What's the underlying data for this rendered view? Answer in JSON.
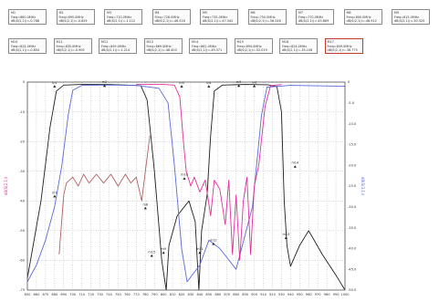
{
  "markers_row1": [
    {
      "name": "M1",
      "freq": "Freq=680.0MHz",
      "val": "dB(S(2,1))=-0.788"
    },
    {
      "name": "M2",
      "freq": "Freq=695.0MHz",
      "val": "dB(S(2,1))=-0.829"
    },
    {
      "name": "M3",
      "freq": "Freq=710.0MHz",
      "val": "dB(S(2,1))=-1.112"
    },
    {
      "name": "M4",
      "freq": "Freq=728.0MHz",
      "val": "dB(S(2,1))=-46.516"
    },
    {
      "name": "M5",
      "freq": "Freq=735.0MHz",
      "val": "dB(S(2,1))=-47.342"
    },
    {
      "name": "M6",
      "freq": "Freq=750.0MHz",
      "val": "dB(S(2,1))=-56.246"
    },
    {
      "name": "M7",
      "freq": "Freq=770.0MHz",
      "val": "dB(S(2,1))=-45.869"
    },
    {
      "name": "M8",
      "freq": "Freq=800.0MHz",
      "val": "dB(S(2,1))=-48.912"
    },
    {
      "name": "M9",
      "freq": "Freq=815.0MHz",
      "val": "dB(S(2,1))=-50.320"
    }
  ],
  "markers_row2": [
    {
      "name": "M10",
      "freq": "Freq=824.0MHz",
      "val": "dB(S(2,1))=-0.854"
    },
    {
      "name": "M11",
      "freq": "Freq=835.0MHz",
      "val": "dB(S(2,1))=-0.909"
    },
    {
      "name": "M12",
      "freq": "Freq=849.0MHz",
      "val": "dB(S(2,1))=-1.214"
    },
    {
      "name": "M13",
      "freq": "Freq=869.0MHz",
      "val": "dB(S(2,1))=-48.403"
    },
    {
      "name": "M14",
      "freq": "Freq=881.0MHz",
      "val": "dB(S(2,1))=-49.371"
    },
    {
      "name": "M15",
      "freq": "Freq=894.0MHz",
      "val": "dB(S(2,1))=-52.019"
    },
    {
      "name": "M16",
      "freq": "Freq=824.0MHz",
      "val": "dB(S(2,1))=-35.108"
    },
    {
      "name": "M17",
      "freq": "Freq=849.0MHz",
      "val": "dB(S(2,1))=-38.775"
    }
  ],
  "colors": {
    "s21": "#1f1f1f",
    "s11": "#e0309a",
    "s22": "#b06060",
    "s31": "#5a6ad8",
    "axis": "#555555",
    "grid": "#9a9a9a"
  },
  "chart_data": {
    "type": "line",
    "xlim": [
      650,
      1000
    ],
    "ylim_left": [
      -70,
      0
    ],
    "ylim_right": [
      -50,
      0
    ],
    "left_axis_label": "dB(S(2,1))",
    "right_axis_label": "dB(S(3,1))",
    "x_ticks": [
      "650",
      "660",
      "670",
      "680",
      "690",
      "700",
      "710",
      "720",
      "730",
      "740",
      "750",
      "760",
      "770",
      "780",
      "790",
      "800",
      "810",
      "820",
      "830",
      "840",
      "850",
      "860",
      "870",
      "880",
      "890",
      "900",
      "910",
      "920",
      "930",
      "940",
      "950",
      "960",
      "970",
      "980",
      "990",
      "1000"
    ],
    "y_ticks_left": [
      "0",
      "-10",
      "-20",
      "-30",
      "-40",
      "-50",
      "-60",
      "-70"
    ],
    "y_ticks_right": [
      "0",
      "-5.0",
      "-10.0",
      "-15.0",
      "-20.0",
      "-25.0",
      "-30.0",
      "-35.0",
      "-40.0",
      "-45.0",
      "-50.0"
    ],
    "series": [
      {
        "key": "s21",
        "axis": "left",
        "points": [
          [
            650,
            -66
          ],
          [
            665,
            -40
          ],
          [
            675,
            -15
          ],
          [
            682,
            -3
          ],
          [
            690,
            -1
          ],
          [
            710,
            -0.8
          ],
          [
            740,
            -0.8
          ],
          [
            775,
            -1.2
          ],
          [
            782,
            -6
          ],
          [
            790,
            -30
          ],
          [
            798,
            -60
          ],
          [
            803,
            -70
          ],
          [
            806,
            -55
          ],
          [
            815,
            -45
          ],
          [
            828,
            -40
          ],
          [
            835,
            -47
          ],
          [
            839,
            -70
          ],
          [
            842,
            -50
          ],
          [
            848,
            -38
          ],
          [
            852,
            -18
          ],
          [
            856,
            -3
          ],
          [
            865,
            -1.0
          ],
          [
            890,
            -0.8
          ],
          [
            915,
            -0.9
          ],
          [
            925,
            -1.5
          ],
          [
            930,
            -10
          ],
          [
            933,
            -40
          ],
          [
            936,
            -55
          ],
          [
            940,
            -62
          ],
          [
            950,
            -55
          ],
          [
            960,
            -50
          ],
          [
            975,
            -58
          ],
          [
            990,
            -65
          ],
          [
            1000,
            -70
          ]
        ]
      },
      {
        "key": "s31",
        "axis": "right",
        "points": [
          [
            650,
            -48
          ],
          [
            660,
            -44
          ],
          [
            670,
            -38
          ],
          [
            680,
            -30
          ],
          [
            688,
            -20
          ],
          [
            695,
            -8
          ],
          [
            700,
            -2
          ],
          [
            710,
            -0.8
          ],
          [
            740,
            -0.7
          ],
          [
            770,
            -0.8
          ],
          [
            795,
            -1.5
          ],
          [
            805,
            -5
          ],
          [
            812,
            -20
          ],
          [
            820,
            -40
          ],
          [
            826,
            -48
          ],
          [
            840,
            -44
          ],
          [
            850,
            -38
          ],
          [
            862,
            -40
          ],
          [
            880,
            -45
          ],
          [
            898,
            -30
          ],
          [
            908,
            -8
          ],
          [
            914,
            -1.2
          ],
          [
            940,
            -0.8
          ],
          [
            970,
            -0.9
          ],
          [
            1000,
            -1.0
          ]
        ]
      },
      {
        "key": "s22",
        "axis": "left",
        "points": [
          [
            685,
            -58
          ],
          [
            690,
            -38
          ],
          [
            693,
            -34
          ],
          [
            700,
            -32
          ],
          [
            706,
            -35
          ],
          [
            712,
            -31
          ],
          [
            718,
            -34
          ],
          [
            726,
            -31
          ],
          [
            734,
            -34
          ],
          [
            742,
            -31
          ],
          [
            750,
            -35
          ],
          [
            758,
            -31
          ],
          [
            764,
            -34
          ],
          [
            770,
            -32
          ],
          [
            776,
            -40
          ],
          [
            780,
            -30
          ],
          [
            785,
            -18
          ]
        ]
      },
      {
        "key": "s11",
        "axis": "left",
        "points": [
          [
            770,
            -0.8
          ],
          [
            800,
            -0.8
          ],
          [
            812,
            -1.0
          ],
          [
            818,
            -5
          ],
          [
            822,
            -20
          ],
          [
            825,
            -30
          ],
          [
            830,
            -35
          ],
          [
            834,
            -32
          ],
          [
            840,
            -37
          ],
          [
            846,
            -33
          ],
          [
            852,
            -45
          ],
          [
            856,
            -33
          ],
          [
            862,
            -36
          ],
          [
            868,
            -48
          ],
          [
            872,
            -33
          ],
          [
            876,
            -58
          ],
          [
            880,
            -38
          ],
          [
            884,
            -60
          ],
          [
            888,
            -40
          ],
          [
            892,
            -32
          ],
          [
            896,
            -58
          ],
          [
            900,
            -35
          ],
          [
            905,
            -28
          ],
          [
            912,
            -8
          ],
          [
            918,
            -1.2
          ],
          [
            930,
            -0.8
          ]
        ]
      }
    ],
    "marker_labels": [
      {
        "name": "m1",
        "x": 680,
        "y": -1.0,
        "axis": "left"
      },
      {
        "name": "m2",
        "x": 735,
        "y": -0.8,
        "axis": "left"
      },
      {
        "name": "m3",
        "x": 820,
        "y": -1.0,
        "axis": "left"
      },
      {
        "name": "m4",
        "x": 850,
        "y": -1.0,
        "axis": "left"
      },
      {
        "name": "m5",
        "x": 883,
        "y": -0.8,
        "axis": "left"
      },
      {
        "name": "m6",
        "x": 900,
        "y": -0.9,
        "axis": "left"
      },
      {
        "name": "m7",
        "x": 680,
        "y": -38,
        "axis": "left"
      },
      {
        "name": "m8",
        "x": 780,
        "y": -42,
        "axis": "left"
      },
      {
        "name": "m9",
        "x": 800,
        "y": -57,
        "axis": "left"
      },
      {
        "name": "m10",
        "x": 823,
        "y": -32,
        "axis": "left"
      },
      {
        "name": "m11",
        "x": 840,
        "y": -57,
        "axis": "left"
      },
      {
        "name": "m12",
        "x": 855,
        "y": -54,
        "axis": "left"
      },
      {
        "name": "m13",
        "x": 935,
        "y": -52,
        "axis": "left"
      },
      {
        "name": "m14",
        "x": 945,
        "y": -20,
        "axis": "right"
      },
      {
        "name": "m15",
        "x": 787,
        "y": -58,
        "axis": "left"
      }
    ]
  }
}
